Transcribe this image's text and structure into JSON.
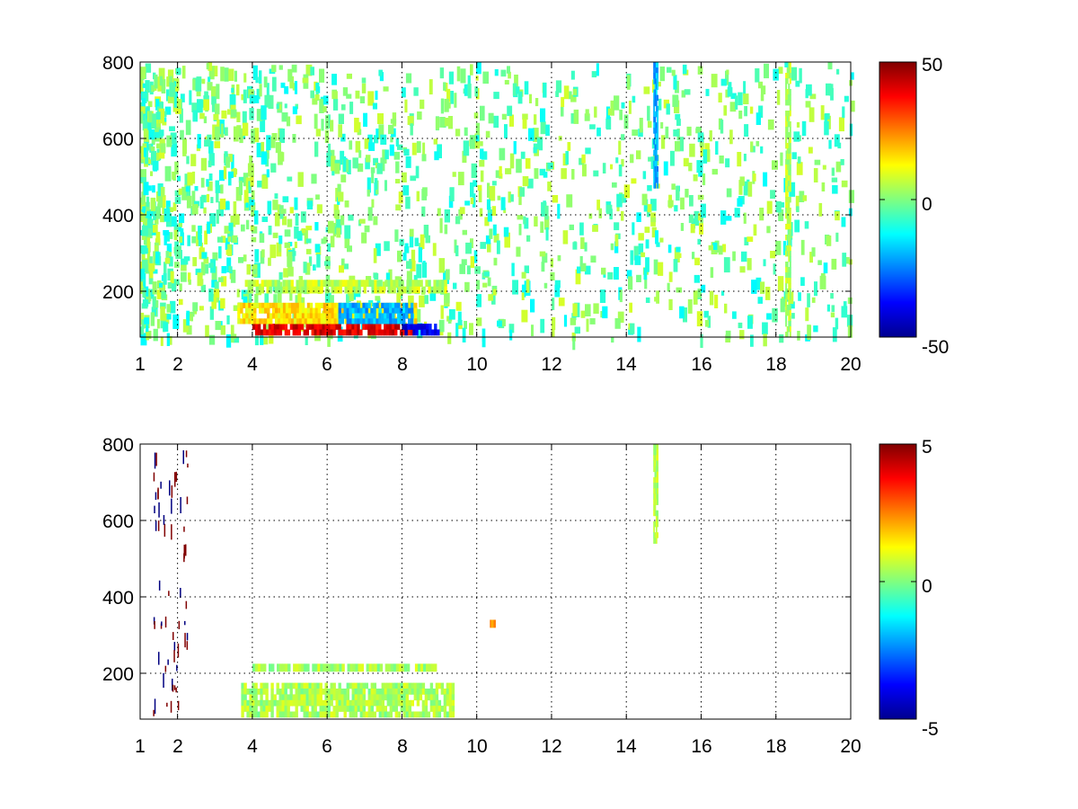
{
  "chart_data": [
    {
      "type": "heatmap",
      "title": "",
      "xlabel": "",
      "ylabel": "",
      "xlim": [
        1,
        20
      ],
      "ylim": [
        80,
        800
      ],
      "xticks": [
        1,
        2,
        4,
        6,
        8,
        10,
        12,
        14,
        16,
        18,
        20
      ],
      "xtick_labels": [
        "1",
        "2",
        "4",
        "6",
        "8",
        "10",
        "12",
        "14",
        "16",
        "18",
        "20"
      ],
      "yticks": [
        200,
        400,
        600,
        800
      ],
      "ytick_labels": [
        "200",
        "400",
        "600",
        "800"
      ],
      "grid": true,
      "colormap": "jet",
      "clim": [
        -50,
        50
      ],
      "colorbar_ticks": [
        -50,
        0,
        50
      ],
      "colorbar_labels": [
        "-50",
        "0",
        "50"
      ],
      "features": [
        {
          "x": [
            4.0,
            8.3
          ],
          "y": [
            85,
            115
          ],
          "value": 40
        },
        {
          "x": [
            8.0,
            9.0
          ],
          "y": [
            85,
            115
          ],
          "value": -40
        },
        {
          "x": [
            3.6,
            8.4
          ],
          "y": [
            115,
            170
          ],
          "value": 15
        },
        {
          "x": [
            6.3,
            8.3
          ],
          "y": [
            115,
            170
          ],
          "value": -20
        },
        {
          "x": [
            3.8,
            9.2
          ],
          "y": [
            195,
            230
          ],
          "value": 6
        },
        {
          "x": [
            14.72,
            14.85
          ],
          "y": [
            470,
            800
          ],
          "value": -20
        },
        {
          "x": [
            18.25,
            18.4
          ],
          "y": [
            80,
            800
          ],
          "value": 5
        }
      ]
    },
    {
      "type": "heatmap",
      "title": "",
      "xlabel": "",
      "ylabel": "",
      "xlim": [
        1,
        20
      ],
      "ylim": [
        80,
        800
      ],
      "xticks": [
        1,
        2,
        4,
        6,
        8,
        10,
        12,
        14,
        16,
        18,
        20
      ],
      "xtick_labels": [
        "1",
        "2",
        "4",
        "6",
        "8",
        "10",
        "12",
        "14",
        "16",
        "18",
        "20"
      ],
      "yticks": [
        200,
        400,
        600,
        800
      ],
      "ytick_labels": [
        "200",
        "400",
        "600",
        "800"
      ],
      "grid": true,
      "colormap": "jet",
      "clim": [
        -5,
        5
      ],
      "colorbar_ticks": [
        -5,
        0,
        5
      ],
      "colorbar_labels": [
        "-5",
        "0",
        "5"
      ],
      "features": [
        {
          "x": [
            3.7,
            9.4
          ],
          "y": [
            85,
            175
          ],
          "value": 0.4
        },
        {
          "x": [
            4.0,
            9.0
          ],
          "y": [
            205,
            225
          ],
          "value": 0.4
        },
        {
          "x": [
            14.72,
            14.85
          ],
          "y": [
            540,
            800
          ],
          "value": 0.6
        },
        {
          "x": [
            10.35,
            10.5
          ],
          "y": [
            320,
            340
          ],
          "value": 2
        }
      ]
    }
  ]
}
